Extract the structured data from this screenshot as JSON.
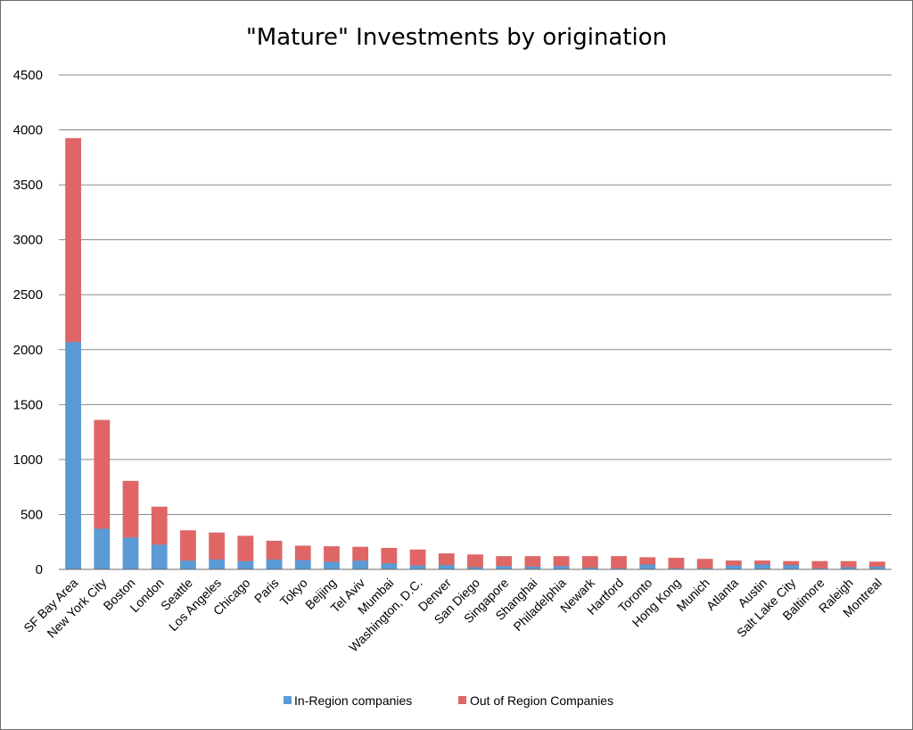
{
  "chart_data": {
    "type": "bar",
    "stacked": true,
    "title": "\"Mature\" Investments by origination",
    "xlabel": "",
    "ylabel": "",
    "ylim": [
      0,
      4500
    ],
    "yticks": [
      0,
      500,
      1000,
      1500,
      2000,
      2500,
      3000,
      3500,
      4000,
      4500
    ],
    "grid": true,
    "legend_position": "bottom",
    "categories": [
      "SF Bay Area",
      "New York City",
      "Boston",
      "London",
      "Seattle",
      "Los Angeles",
      "Chicago",
      "Paris",
      "Tokyo",
      "Beijing",
      "Tel Aviv",
      "Mumbai",
      "Washington, D.C.",
      "Denver",
      "San Diego",
      "Singapore",
      "Shanghai",
      "Philadelphia",
      "Newark",
      "Hartford",
      "Toronto",
      "Hong Kong",
      "Munich",
      "Atlanta",
      "Austin",
      "Salt Lake City",
      "Baltimore",
      "Raleigh",
      "Montreal"
    ],
    "series": [
      {
        "name": "In-Region companies",
        "color": "#5b9bd5",
        "values": [
          2070,
          370,
          290,
          225,
          80,
          90,
          75,
          90,
          85,
          70,
          80,
          55,
          35,
          40,
          20,
          30,
          25,
          30,
          15,
          10,
          45,
          10,
          10,
          35,
          45,
          40,
          10,
          20,
          25
        ]
      },
      {
        "name": "Out of Region Companies",
        "color": "#e06666",
        "values": [
          1855,
          990,
          515,
          345,
          275,
          245,
          230,
          170,
          130,
          140,
          125,
          140,
          145,
          105,
          115,
          90,
          95,
          90,
          105,
          110,
          65,
          95,
          85,
          45,
          35,
          35,
          65,
          55,
          45
        ]
      }
    ]
  }
}
